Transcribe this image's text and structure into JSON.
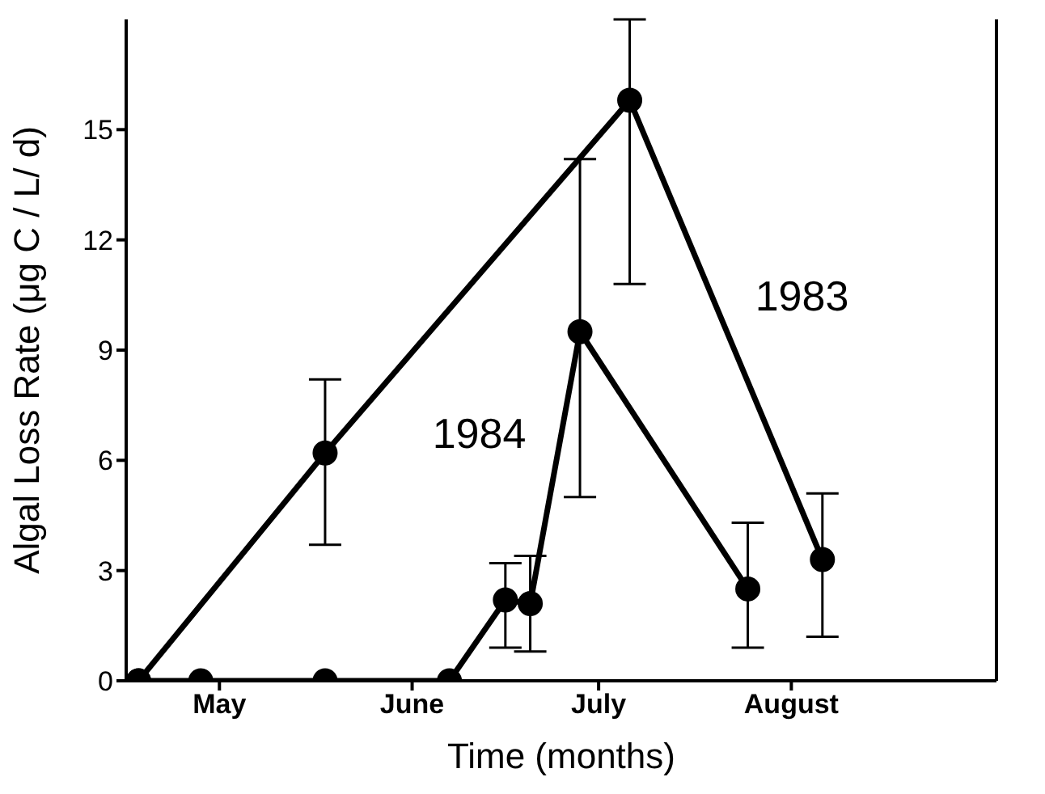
{
  "chart_data": {
    "type": "line",
    "xlabel": "Time (months)",
    "ylabel": "Algal Loss Rate (μg C / L/ d)",
    "xlim": [
      "--04-30",
      "--09-17"
    ],
    "xticks": [
      {
        "value": "--05-15",
        "label": "May"
      },
      {
        "value": "--06-15",
        "label": "June"
      },
      {
        "value": "--07-15",
        "label": "July"
      },
      {
        "value": "--08-15",
        "label": "August"
      }
    ],
    "ylim": [
      0,
      18
    ],
    "yticks": [
      0,
      3,
      6,
      9,
      12,
      15
    ],
    "tick_labels": "xy",
    "grid": false,
    "marker": "circle",
    "line_style": "solid",
    "series": [
      {
        "name": "1983",
        "color": "#000000",
        "x": [
          "--05-02",
          "--06-01",
          "--07-20",
          "--08-20"
        ],
        "values": [
          0,
          6.2,
          15.8,
          3.3
        ],
        "errors": [
          null,
          [
            3.7,
            8.2
          ],
          [
            10.8,
            18
          ],
          [
            1.2,
            5.1
          ]
        ]
      },
      {
        "name": "1984",
        "color": "#000000",
        "x": [
          "--05-02",
          "--05-12",
          "--06-01",
          "--06-21",
          "--06-30",
          "--07-04",
          "--07-12",
          "--08-08"
        ],
        "values": [
          0,
          0,
          0,
          0,
          2.2,
          2.1,
          9.5,
          2.5
        ],
        "errors": [
          null,
          null,
          null,
          null,
          [
            0.9,
            3.2
          ],
          [
            0.8,
            3.4
          ],
          [
            5.0,
            14.2
          ],
          [
            0.9,
            4.3
          ]
        ]
      }
    ]
  }
}
